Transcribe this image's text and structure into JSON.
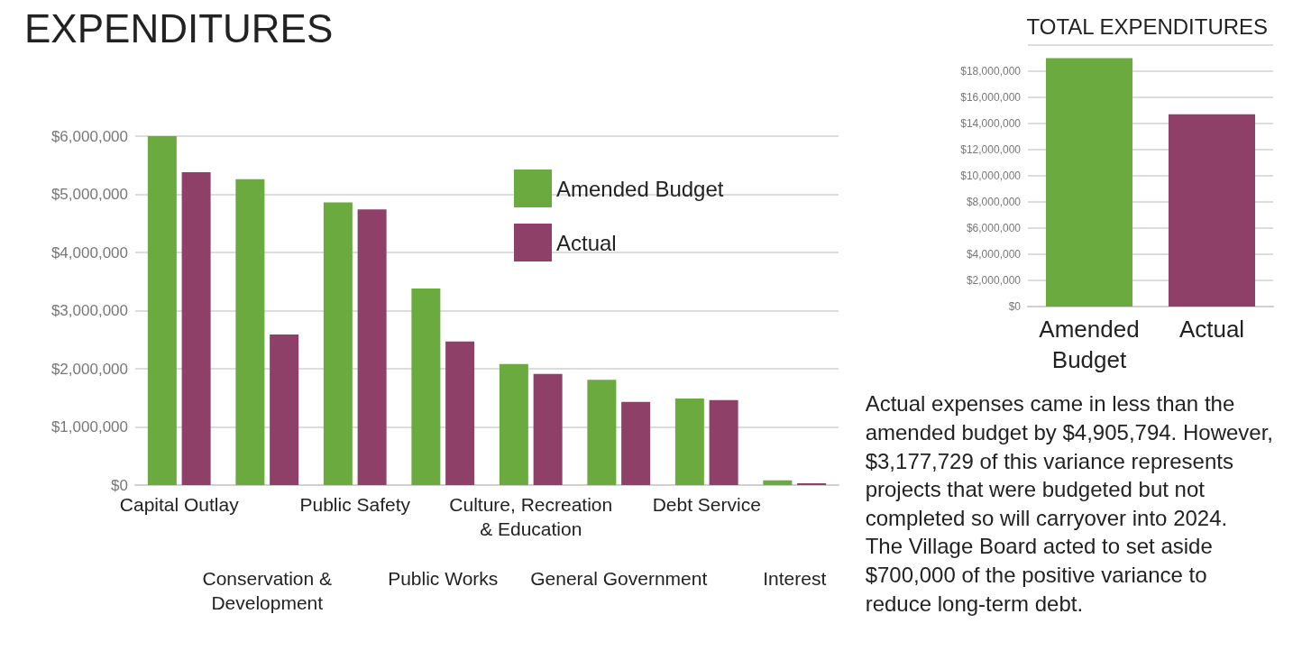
{
  "chart_data": [
    {
      "type": "bar",
      "title": "EXPENDITURES",
      "categories": [
        "Capital Outlay",
        "Conservation & Development",
        "Public Safety",
        "Public Works",
        "Culture, Recreation & Education",
        "General Government",
        "Debt Service",
        "Interest"
      ],
      "series": [
        {
          "name": "Amended Budget",
          "color": "#6aaa3e",
          "values": [
            6000000,
            5260000,
            4860000,
            3380000,
            2080000,
            1810000,
            1490000,
            80000
          ]
        },
        {
          "name": "Actual",
          "color": "#8e4068",
          "values": [
            5380000,
            2590000,
            4740000,
            2470000,
            1910000,
            1430000,
            1460000,
            30000
          ]
        }
      ],
      "ylim": [
        0,
        6000000
      ],
      "yticks": [
        {
          "value": 0,
          "label": "$0"
        },
        {
          "value": 1000000,
          "label": "$1,000,000"
        },
        {
          "value": 2000000,
          "label": "$2,000,000"
        },
        {
          "value": 3000000,
          "label": "$3,000,000"
        },
        {
          "value": 4000000,
          "label": "$4,000,000"
        },
        {
          "value": 5000000,
          "label": "$5,000,000"
        },
        {
          "value": 6000000,
          "label": "$6,000,000"
        }
      ],
      "grid": "y",
      "legend": "top right"
    },
    {
      "type": "bar",
      "title": "TOTAL EXPENDITURES",
      "categories": [
        "Amended Budget",
        "Actual"
      ],
      "values": [
        19000000,
        14710000
      ],
      "colors": [
        "#6aaa3e",
        "#8e4068"
      ],
      "ylim": [
        0,
        20000000
      ],
      "yticks": [
        {
          "value": 0,
          "label": "$0"
        },
        {
          "value": 2000000,
          "label": "$2,000,000"
        },
        {
          "value": 4000000,
          "label": "$4,000,000"
        },
        {
          "value": 6000000,
          "label": "$6,000,000"
        },
        {
          "value": 8000000,
          "label": "$8,000,000"
        },
        {
          "value": 10000000,
          "label": "$10,000,000"
        },
        {
          "value": 12000000,
          "label": "$12,000,000"
        },
        {
          "value": 14000000,
          "label": "$14,000,000"
        },
        {
          "value": 16000000,
          "label": "$16,000,000"
        },
        {
          "value": 18000000,
          "label": "$18,000,000"
        },
        {
          "value": 20000000,
          "label": null
        }
      ],
      "grid": "y",
      "annotations": [
        "Actual expenses came in less than the amended budget by $4,905,794. However, $3,177,729 of this variance represents projects that were budgeted but not completed so will carryover into 2024. The Village Board acted to set aside $700,000 of the positive variance to reduce long-term debt."
      ]
    }
  ]
}
